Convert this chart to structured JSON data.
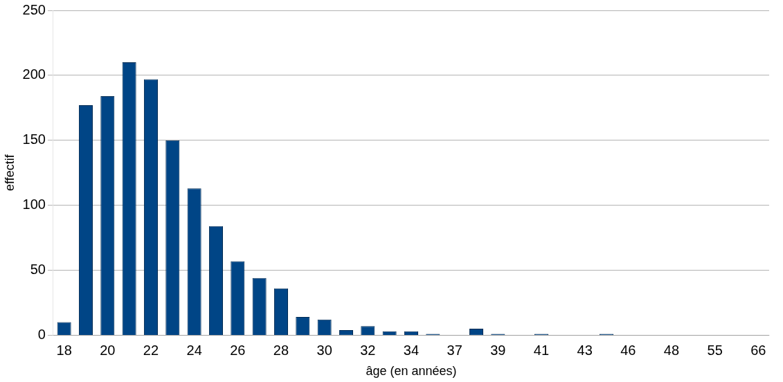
{
  "chart_data": {
    "type": "bar",
    "xlabel": "âge (en années)",
    "ylabel": "effectif",
    "categories": [
      "18",
      null,
      "20",
      null,
      "22",
      null,
      "24",
      null,
      "26",
      null,
      "28",
      null,
      "30",
      null,
      "32",
      null,
      "34",
      null,
      "37",
      null,
      "39",
      null,
      "41",
      null,
      "43",
      null,
      "46",
      null,
      "48",
      null,
      "55",
      null,
      "66"
    ],
    "values": [
      10,
      177,
      184,
      210,
      197,
      150,
      113,
      84,
      57,
      44,
      36,
      14,
      12,
      4,
      7,
      3,
      3,
      1,
      0,
      5,
      1,
      0,
      1,
      0,
      0,
      1,
      0,
      0,
      0,
      0,
      0,
      0,
      0
    ],
    "color": "#004586",
    "ylim": [
      0,
      250
    ],
    "yticks": [
      0,
      50,
      100,
      150,
      200,
      250
    ],
    "grid": "y",
    "legend": false
  }
}
